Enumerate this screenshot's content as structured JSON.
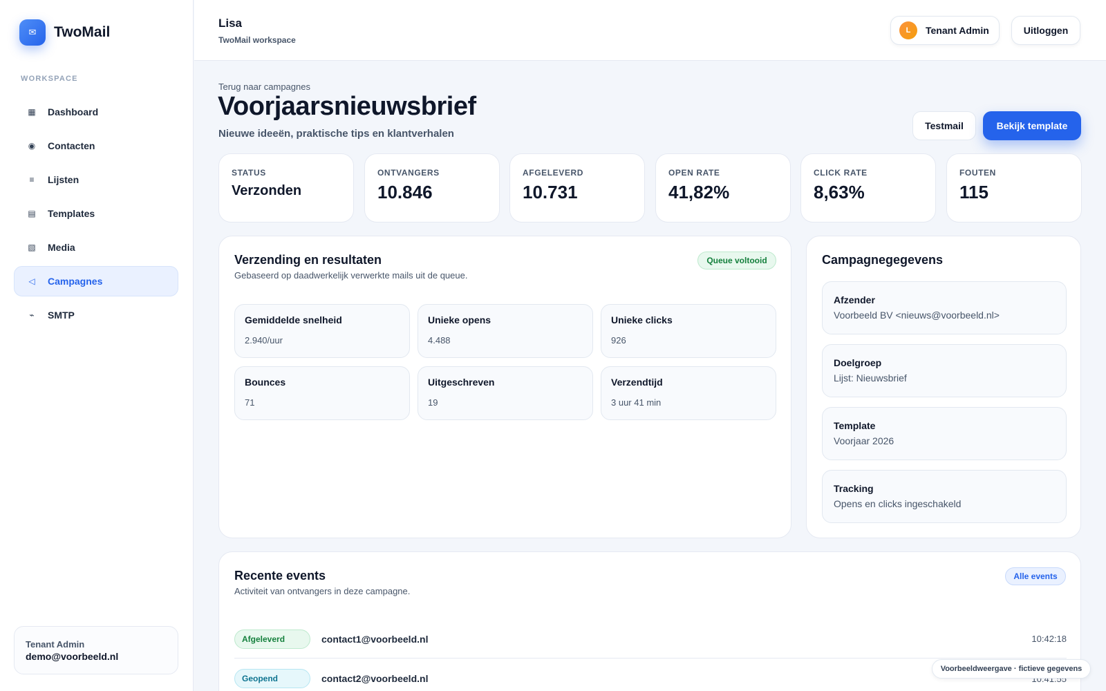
{
  "brand": {
    "name": "TwoMail",
    "logo_icon": "mail-icon"
  },
  "sidebar": {
    "section_label": "WORKSPACE",
    "items": [
      {
        "label": "Dashboard",
        "icon": "grid-icon",
        "glyph": "▦",
        "active": false
      },
      {
        "label": "Contacten",
        "icon": "contacts-icon",
        "glyph": "◉",
        "active": false
      },
      {
        "label": "Lijsten",
        "icon": "list-icon",
        "glyph": "≡",
        "active": false
      },
      {
        "label": "Templates",
        "icon": "template-icon",
        "glyph": "▤",
        "active": false
      },
      {
        "label": "Media",
        "icon": "media-icon",
        "glyph": "▧",
        "active": false
      },
      {
        "label": "Campagnes",
        "icon": "send-icon",
        "glyph": "◁",
        "active": true
      },
      {
        "label": "SMTP",
        "icon": "smtp-icon",
        "glyph": "⌁",
        "active": false
      }
    ],
    "user": {
      "role": "Tenant Admin",
      "email": "demo@voorbeeld.nl"
    }
  },
  "topbar": {
    "name": "Lisa",
    "workspace": "TwoMail workspace",
    "role_avatar": "L",
    "role_label": "Tenant Admin",
    "logout_label": "Uitloggen"
  },
  "header": {
    "back_link": "Terug naar campagnes",
    "title": "Voorjaarsnieuwsbrief",
    "subtitle": "Nieuwe ideeën, praktische tips en klantverhalen",
    "test_button": "Testmail",
    "template_button": "Bekijk template"
  },
  "stats": [
    {
      "label": "STATUS",
      "value": "Verzonden"
    },
    {
      "label": "ONTVANGERS",
      "value": "10.846"
    },
    {
      "label": "AFGELEVERD",
      "value": "10.731"
    },
    {
      "label": "OPEN RATE",
      "value": "41,82%"
    },
    {
      "label": "CLICK RATE",
      "value": "8,63%"
    },
    {
      "label": "FOUTEN",
      "value": "115"
    }
  ],
  "results": {
    "title": "Verzending en resultaten",
    "subtitle": "Gebaseerd op daadwerkelijk verwerkte mails uit de queue.",
    "badge": "Queue voltooid",
    "metrics": [
      {
        "label": "Gemiddelde snelheid",
        "value": "2.940/uur"
      },
      {
        "label": "Unieke opens",
        "value": "4.488"
      },
      {
        "label": "Unieke clicks",
        "value": "926"
      },
      {
        "label": "Bounces",
        "value": "71"
      },
      {
        "label": "Uitgeschreven",
        "value": "19"
      },
      {
        "label": "Verzendtijd",
        "value": "3 uur 41 min"
      }
    ]
  },
  "details": {
    "title": "Campagnegegevens",
    "items": [
      {
        "label": "Afzender",
        "value": "Voorbeeld BV <nieuws@voorbeeld.nl>"
      },
      {
        "label": "Doelgroep",
        "value": "Lijst: Nieuwsbrief"
      },
      {
        "label": "Template",
        "value": "Voorjaar 2026"
      },
      {
        "label": "Tracking",
        "value": "Opens en clicks ingeschakeld"
      }
    ]
  },
  "events": {
    "title": "Recente events",
    "subtitle": "Activiteit van ontvangers in deze campagne.",
    "all_button": "Alle events",
    "rows": [
      {
        "type": "Afgeleverd",
        "email": "contact1@voorbeeld.nl",
        "time": "10:42:18"
      },
      {
        "type": "Geopend",
        "email": "contact2@voorbeeld.nl",
        "time": "10:41:55"
      }
    ]
  },
  "footnote": "Voorbeeldweergave · fictieve gegevens"
}
